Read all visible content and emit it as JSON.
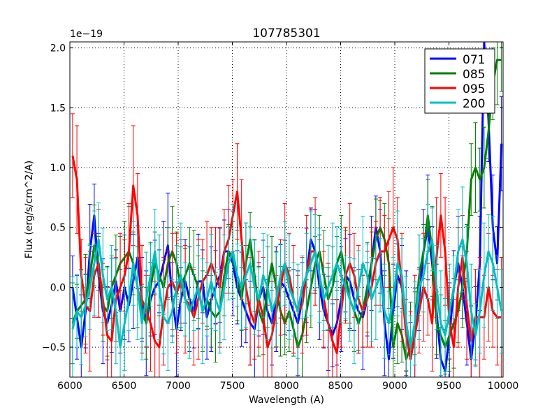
{
  "chart_data": {
    "type": "line",
    "title": "107785301",
    "xlabel": "Wavelength (A)",
    "ylabel": "Flux (erg/s/cm^2/A)",
    "y_offset_label": "1e−19",
    "xlim": [
      6000,
      10000
    ],
    "ylim": [
      -0.75,
      2.05
    ],
    "x_ticks": [
      6000,
      6500,
      7000,
      7500,
      8000,
      8500,
      9000,
      9500,
      10000
    ],
    "x_tick_labels": [
      "6000",
      "6500",
      "7000",
      "7500",
      "8000",
      "8500",
      "9000",
      "9500",
      "10000"
    ],
    "y_ticks": [
      -0.5,
      0.0,
      0.5,
      1.0,
      1.5,
      2.0
    ],
    "y_tick_labels": [
      "−0.5",
      "0.0",
      "0.5",
      "1.0",
      "1.5",
      "2.0"
    ],
    "grid": true,
    "legend_position": "top-right",
    "x": [
      6025,
      6065,
      6105,
      6145,
      6185,
      6225,
      6265,
      6305,
      6345,
      6385,
      6425,
      6465,
      6505,
      6545,
      6585,
      6625,
      6665,
      6705,
      6745,
      6785,
      6825,
      6865,
      6905,
      6945,
      6985,
      7025,
      7065,
      7105,
      7145,
      7185,
      7225,
      7265,
      7305,
      7345,
      7385,
      7425,
      7465,
      7505,
      7545,
      7585,
      7625,
      7665,
      7705,
      7745,
      7785,
      7825,
      7865,
      7905,
      7945,
      7985,
      8025,
      8065,
      8105,
      8145,
      8185,
      8225,
      8265,
      8305,
      8345,
      8385,
      8425,
      8465,
      8505,
      8545,
      8585,
      8625,
      8665,
      8705,
      8745,
      8785,
      8825,
      8865,
      8905,
      8945,
      8985,
      9025,
      9065,
      9105,
      9145,
      9185,
      9225,
      9265,
      9305,
      9345,
      9385,
      9425,
      9465,
      9505,
      9545,
      9585,
      9625,
      9665,
      9705,
      9745,
      9785,
      9825,
      9865,
      9905,
      9945,
      9985
    ],
    "series": [
      {
        "name": "071",
        "color": "#0000ff",
        "err": 0.35,
        "values": [
          0.0,
          -0.25,
          -0.5,
          -0.2,
          0.3,
          0.6,
          0.1,
          -0.2,
          -0.3,
          -0.15,
          0.05,
          -0.2,
          0.0,
          -0.15,
          0.05,
          0.25,
          -0.1,
          -0.3,
          -0.1,
          0.0,
          0.05,
          0.2,
          0.35,
          -0.1,
          -0.35,
          -0.1,
          0.05,
          -0.1,
          -0.2,
          0.05,
          0.05,
          -0.25,
          -0.1,
          0.0,
          0.1,
          0.3,
          0.3,
          0.2,
          0.0,
          -0.1,
          -0.2,
          -0.3,
          -0.35,
          -0.1,
          0.0,
          -0.2,
          -0.3,
          -0.1,
          0.05,
          0.0,
          -0.1,
          -0.2,
          -0.3,
          -0.1,
          0.1,
          0.4,
          0.3,
          0.0,
          -0.2,
          -0.3,
          -0.4,
          -0.3,
          -0.1,
          0.1,
          0.05,
          -0.1,
          -0.2,
          -0.25,
          -0.1,
          0.2,
          0.5,
          0.3,
          -0.3,
          -0.6,
          -0.2,
          0.1,
          0.0,
          -0.3,
          -0.6,
          -0.4,
          -0.1,
          0.3,
          0.5,
          0.2,
          -0.2,
          -0.6,
          -0.7,
          -0.4,
          0.0,
          0.2,
          0.0,
          -0.3,
          -0.6,
          -0.3,
          0.2,
          2.05,
          1.4,
          0.5,
          0.2,
          1.2
        ]
      },
      {
        "name": "085",
        "color": "#007f00",
        "err": 0.3,
        "values": [
          -0.3,
          -0.2,
          -0.15,
          -0.1,
          0.1,
          0.35,
          0.2,
          -0.15,
          -0.2,
          0.0,
          0.1,
          0.2,
          0.25,
          0.3,
          0.2,
          0.0,
          -0.2,
          -0.3,
          0.0,
          0.2,
          0.1,
          0.0,
          0.2,
          0.3,
          0.2,
          0.0,
          0.1,
          0.2,
          0.1,
          0.0,
          -0.2,
          -0.1,
          -0.2,
          -0.25,
          -0.2,
          0.1,
          0.3,
          0.25,
          0.1,
          -0.1,
          0.2,
          0.4,
          0.1,
          -0.2,
          -0.3,
          0.0,
          0.2,
          0.0,
          -0.2,
          -0.3,
          -0.2,
          -0.35,
          -0.5,
          -0.4,
          -0.2,
          0.0,
          0.2,
          0.3,
          0.1,
          -0.1,
          0.0,
          0.2,
          0.3,
          0.1,
          -0.1,
          -0.2,
          -0.3,
          -0.2,
          0.0,
          0.2,
          0.4,
          0.5,
          0.4,
          0.2,
          -0.5,
          -0.3,
          -0.4,
          -0.6,
          -0.5,
          -0.3,
          0.1,
          0.3,
          0.6,
          0.3,
          -0.3,
          -0.4,
          -0.5,
          -0.4,
          -0.3,
          -0.2,
          0.0,
          0.3,
          0.9,
          1.0,
          0.9,
          1.0,
          1.3,
          1.7,
          1.9,
          1.9
        ]
      },
      {
        "name": "095",
        "color": "#ff0000",
        "err": 0.4,
        "values": [
          1.1,
          0.9,
          0.1,
          -0.15,
          -0.2,
          0.1,
          0.2,
          -0.1,
          -0.4,
          -0.45,
          -0.1,
          0.0,
          0.1,
          0.3,
          0.85,
          0.6,
          -0.1,
          -0.2,
          -0.3,
          -0.45,
          -0.5,
          -0.2,
          0.0,
          0.05,
          -0.05,
          0.05,
          -0.1,
          -0.15,
          -0.25,
          -0.1,
          0.05,
          0.1,
          0.2,
          0.1,
          0.0,
          0.3,
          0.4,
          0.6,
          0.8,
          0.4,
          0.0,
          -0.2,
          -0.3,
          -0.1,
          -0.25,
          -0.5,
          -0.4,
          -0.2,
          0.0,
          0.2,
          0.1,
          -0.1,
          -0.2,
          -0.15,
          0.1,
          0.3,
          0.3,
          0.1,
          -0.1,
          -0.3,
          -0.45,
          -0.55,
          -0.2,
          0.1,
          0.2,
          0.1,
          -0.1,
          -0.2,
          -0.1,
          0.0,
          0.2,
          0.3,
          0.3,
          0.4,
          0.5,
          0.4,
          0.0,
          -0.4,
          -0.6,
          -0.4,
          -0.2,
          0.0,
          -0.1,
          -0.3,
          0.25,
          0.6,
          0.3,
          -0.3,
          -0.5,
          0.0,
          0.25,
          -0.15,
          -0.45,
          -0.25,
          -0.25,
          -0.25,
          0.0,
          -0.2,
          -0.25,
          -0.25
        ]
      },
      {
        "name": "200",
        "color": "#00bfbf",
        "err": 0.35,
        "values": [
          -0.35,
          -0.2,
          -0.25,
          -0.15,
          0.0,
          0.2,
          0.4,
          0.1,
          -0.1,
          0.0,
          -0.2,
          -0.5,
          -0.3,
          -0.1,
          0.2,
          0.0,
          -0.3,
          -0.1,
          0.1,
          0.3,
          0.0,
          -0.25,
          -0.3,
          -0.2,
          0.0,
          0.1,
          -0.1,
          -0.2,
          -0.1,
          0.0,
          -0.2,
          -0.1,
          0.05,
          -0.1,
          -0.2,
          0.0,
          0.2,
          0.3,
          0.1,
          0.0,
          0.1,
          0.2,
          0.0,
          -0.1,
          0.1,
          0.0,
          -0.2,
          -0.1,
          0.1,
          0.2,
          0.0,
          -0.1,
          -0.2,
          0.0,
          0.1,
          0.2,
          0.3,
          0.1,
          -0.1,
          0.0,
          0.1,
          0.2,
          0.1,
          0.0,
          -0.1,
          -0.2,
          0.0,
          0.2,
          0.1,
          -0.1,
          0.0,
          0.1,
          -0.2,
          -0.3,
          -0.1,
          0.2,
          0.1,
          -0.3,
          -0.5,
          -0.3,
          0.0,
          0.1,
          0.3,
          0.4,
          0.0,
          -0.3,
          -0.4,
          -0.2,
          0.0,
          0.3,
          0.4,
          0.2,
          -0.2,
          -0.4,
          -0.2,
          0.1,
          0.3,
          0.2,
          0.0,
          -0.2
        ]
      }
    ]
  }
}
